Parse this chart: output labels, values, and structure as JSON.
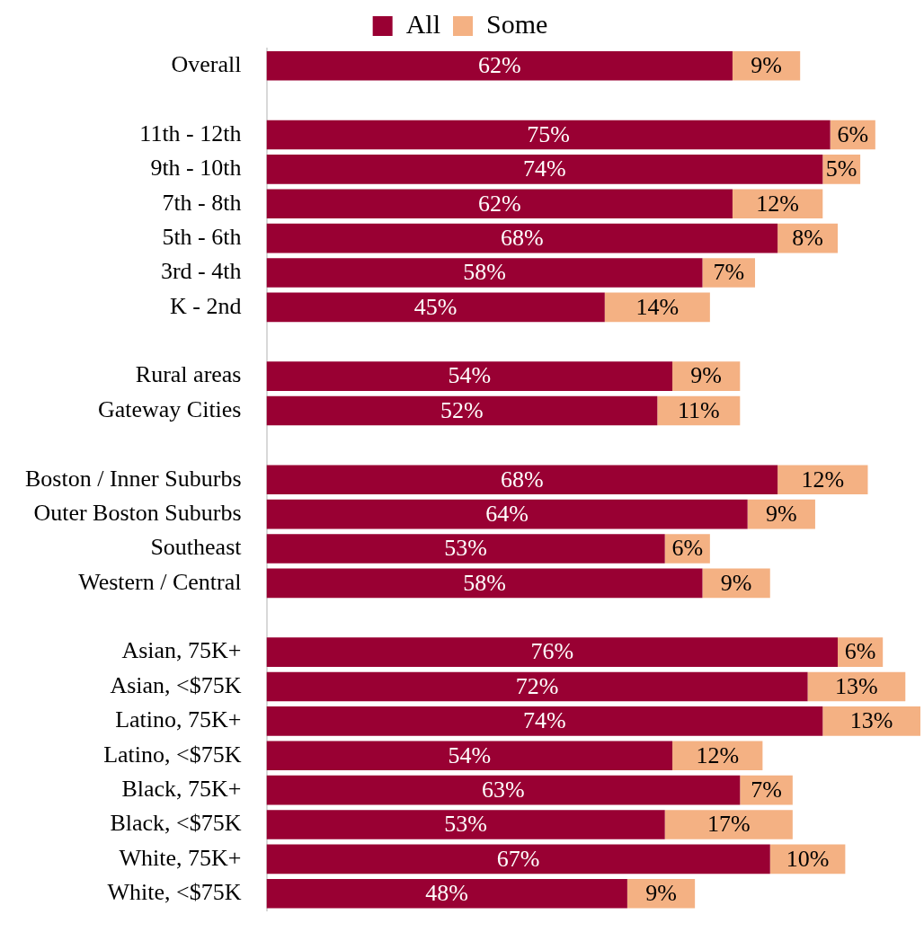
{
  "chart_data": {
    "type": "bar",
    "orientation": "horizontal",
    "stacked": true,
    "legend": "top",
    "categories": [
      "Overall",
      null,
      "11th - 12th",
      "9th - 10th",
      "7th - 8th",
      "5th - 6th",
      "3rd - 4th",
      "K - 2nd",
      null,
      "Rural areas",
      "Gateway Cities",
      null,
      "Boston / Inner Suburbs",
      "Outer Boston Suburbs",
      "Southeast",
      "Western / Central",
      null,
      "Asian, 75K+",
      "Asian, <$75K",
      "Latino, 75K+",
      "Latino, <$75K",
      "Black, 75K+",
      "Black, <$75K",
      "White, 75K+",
      "White, <$75K"
    ],
    "series": [
      {
        "name": "All",
        "color": "#990033",
        "values": [
          62,
          null,
          75,
          74,
          62,
          68,
          58,
          45,
          null,
          54,
          52,
          null,
          68,
          64,
          53,
          58,
          null,
          76,
          72,
          74,
          54,
          63,
          53,
          67,
          48
        ],
        "value_labels": [
          "62%",
          null,
          "75%",
          "74%",
          "62%",
          "68%",
          "58%",
          "45%",
          null,
          "54%",
          "52%",
          null,
          "68%",
          "64%",
          "53%",
          "58%",
          null,
          "76%",
          "72%",
          "74%",
          "54%",
          "63%",
          "53%",
          "67%",
          "48%"
        ]
      },
      {
        "name": "Some",
        "color": "#f4b183",
        "values": [
          9,
          null,
          6,
          5,
          12,
          8,
          7,
          14,
          null,
          9,
          11,
          null,
          12,
          9,
          6,
          9,
          null,
          6,
          13,
          13,
          12,
          7,
          17,
          10,
          9
        ],
        "value_labels": [
          "9%",
          null,
          "6%",
          "5%",
          "12%",
          "8%",
          "7%",
          "14%",
          null,
          "9%",
          "11%",
          null,
          "12%",
          "9%",
          "6%",
          "9%",
          null,
          "6%",
          "13%",
          "13%",
          "12%",
          "7%",
          "17%",
          "10%",
          "9%"
        ]
      }
    ]
  }
}
